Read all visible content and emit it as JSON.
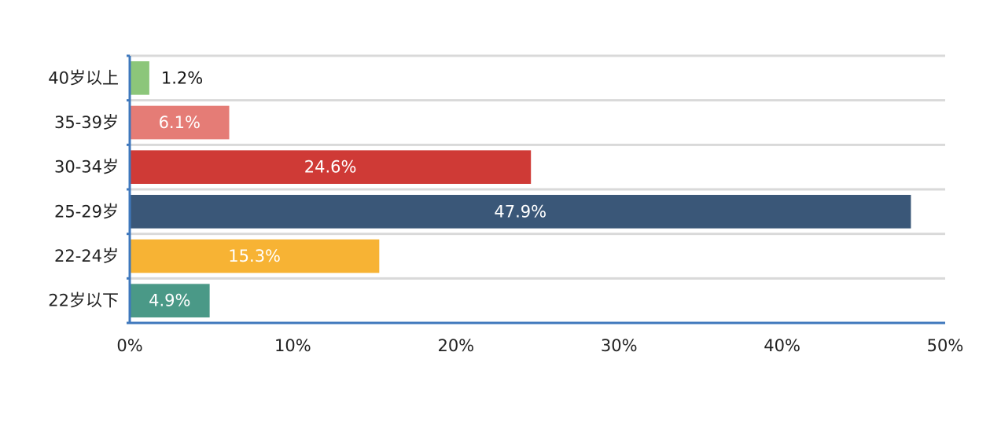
{
  "chart_data": {
    "type": "bar",
    "orientation": "horizontal",
    "categories": [
      "40岁以上",
      "35-39岁",
      "30-34岁",
      "25-29岁",
      "22-24岁",
      "22岁以下"
    ],
    "values": [
      1.2,
      6.1,
      24.6,
      47.9,
      15.3,
      4.9
    ],
    "value_labels": [
      "1.2%",
      "6.1%",
      "24.6%",
      "47.9%",
      "15.3%",
      "4.9%"
    ],
    "bar_colors": [
      "#8cc67a",
      "#e57c76",
      "#cf3a36",
      "#3a5778",
      "#f7b334",
      "#4a9987"
    ],
    "label_colors": [
      "#111111",
      "#ffffff",
      "#ffffff",
      "#ffffff",
      "#ffffff",
      "#ffffff"
    ],
    "x_ticks": [
      0,
      10,
      20,
      30,
      40,
      50
    ],
    "x_tick_labels": [
      "0%",
      "10%",
      "20%",
      "30%",
      "40%",
      "50%"
    ],
    "xlim": [
      0,
      50
    ],
    "grid": true,
    "axis_color": "#3f78bd",
    "grid_color": "#d9d9d9",
    "title": "",
    "xlabel": "",
    "ylabel": ""
  }
}
